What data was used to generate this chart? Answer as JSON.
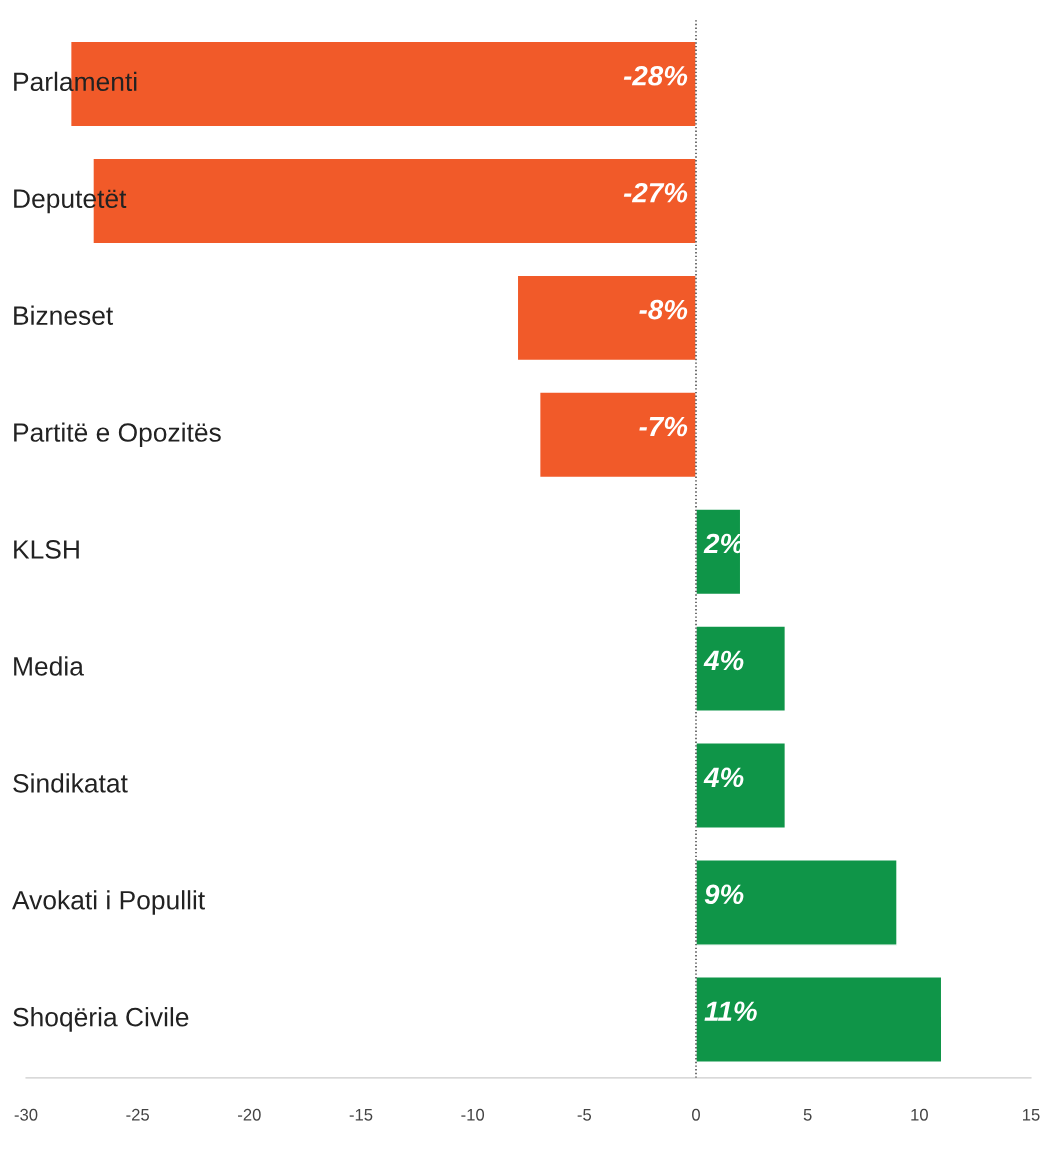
{
  "chart_data": {
    "type": "bar",
    "orientation": "horizontal",
    "categories": [
      "Parlamenti",
      "Deputetët",
      "Bizneset",
      "Partitë e Opozitës",
      "KLSH",
      "Media",
      "Sindikatat",
      "Avokati i Popullit",
      "Shoqëria Civile"
    ],
    "values": [
      -28,
      -27,
      -8,
      -7,
      2,
      4,
      4,
      9,
      11
    ],
    "colors": [
      "#f15a29",
      "#f15a29",
      "#f15a29",
      "#f15a29",
      "#0f9548",
      "#0f9548",
      "#0f9548",
      "#0f9548",
      "#0f9548"
    ],
    "value_labels": [
      "-28%",
      "-27%",
      "-8%",
      "-7%",
      "2%",
      "4%",
      "4%",
      "9%",
      "11%"
    ],
    "xlim": [
      -30,
      15
    ],
    "xticks": [
      -30,
      -25,
      -20,
      -15,
      -10,
      -5,
      0,
      5,
      10,
      15
    ],
    "ref_lines": [
      {
        "axis": "x",
        "value": 0,
        "line_style": "dotted",
        "color": "#333333"
      }
    ],
    "grid": false,
    "legend": false
  }
}
